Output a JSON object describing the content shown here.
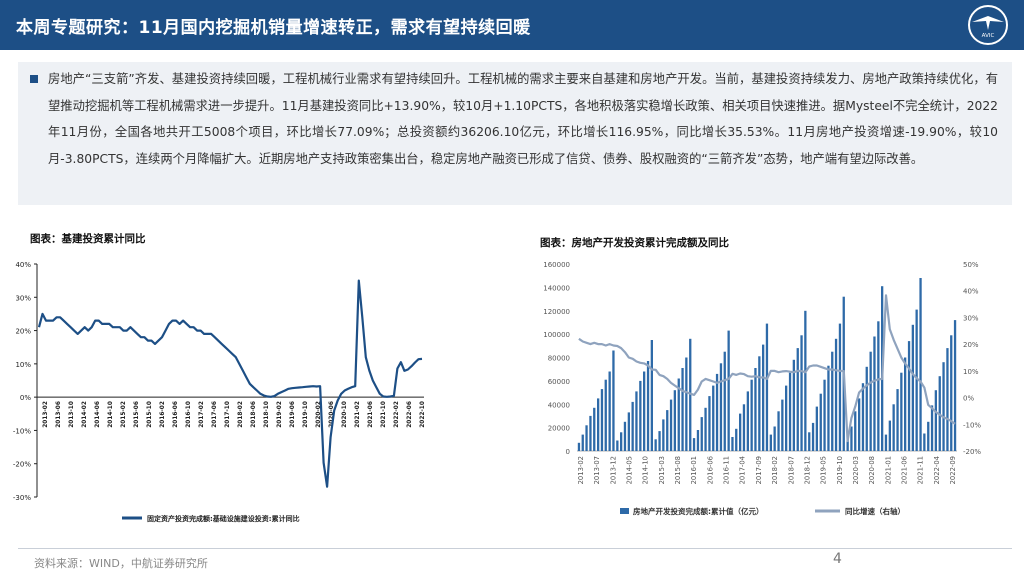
{
  "header": {
    "title": "本周专题研究：11月国内挖掘机销量增速转正，需求有望持续回暖",
    "logo_text": "AVIC",
    "color": "#1d4f86"
  },
  "summary": {
    "text": "房地产“三支箭”齐发、基建投资持续回暖，工程机械行业需求有望持续回升。工程机械的需求主要来自基建和房地产开发。当前，基建投资持续发力、房地产政策持续优化，有望推动挖掘机等工程机械需求进一步提升。11月基建投资同比+13.90%，较10月+1.10PCTS，各地积极落实稳增长政策、相关项目快速推进。据Mysteel不完全统计，2022年11月份，全国各地共开工5008个项目，环比增长77.09%；总投资额约36206.10亿元，环比增长116.95%，同比增长35.53%。11月房地产投资增速-19.90%，较10月-3.80PCTS，连续两个月降幅扩大。近期房地产支持政策密集出台，稳定房地产融资已形成了信贷、债券、股权融资的“三箭齐发”态势，地产端有望边际改善。"
  },
  "footer": {
    "source": "资料来源：WIND，中航证券研究所",
    "page": "4"
  },
  "chart_data": [
    {
      "type": "line",
      "title": "图表：基建投资累计同比",
      "ylim": [
        -30,
        40
      ],
      "yticks": [
        "40%",
        "30%",
        "20%",
        "10%",
        "0%",
        "-10%",
        "-20%",
        "-30%"
      ],
      "tick_labels": [
        "2013-02",
        "2013-06",
        "2013-10",
        "2014-02",
        "2014-06",
        "2014-10",
        "2015-02",
        "2015-06",
        "2015-10",
        "2016-02",
        "2016-06",
        "2016-10",
        "2017-02",
        "2017-06",
        "2017-10",
        "2018-02",
        "2018-06",
        "2018-10",
        "2019-02",
        "2019-06",
        "2019-10",
        "2020-02",
        "2020-06",
        "2020-10",
        "2021-02",
        "2021-06",
        "2021-10",
        "2022-02",
        "2022-06",
        "2022-10"
      ],
      "series": [
        {
          "name": "固定资产投资完成额:基础设施建设投资:累计同比",
          "color": "#1d4f86",
          "values": [
            21,
            25,
            23,
            23,
            23,
            24,
            24,
            23,
            22,
            21,
            20,
            19,
            20,
            21,
            20,
            21,
            23,
            23,
            22,
            22,
            22,
            21,
            21,
            21,
            20,
            20,
            21,
            20,
            19,
            18,
            18,
            17,
            17,
            16,
            17,
            18,
            20,
            22,
            23,
            23,
            22,
            23,
            22,
            21,
            21,
            20,
            20,
            19,
            19,
            19,
            18,
            17,
            16,
            15,
            14,
            13,
            12,
            10,
            8,
            6,
            4,
            3,
            2,
            1,
            0.5,
            0.2,
            0.1,
            0.3,
            1.0,
            1.5,
            2.0,
            2.5,
            2.7,
            2.8,
            2.9,
            3.0,
            3.1,
            3.2,
            3.3,
            3.2,
            3.3,
            -19.7,
            -26.9,
            -12.0,
            -4.0,
            -1.0,
            1.0,
            2.0,
            2.5,
            3.0,
            3.3,
            35,
            24,
            12,
            8,
            5,
            3,
            1,
            0.2,
            0.1,
            0.2,
            0.4,
            8.6,
            10.5,
            7.9,
            8.3,
            9.3,
            10.4,
            11.4,
            11.5
          ]
        }
      ]
    },
    {
      "type": "bar+line",
      "title": "图表：房地产开发投资累计完成额及同比",
      "x_tick_labels": [
        "2013-02",
        "2013-07",
        "2013-12",
        "2014-05",
        "2014-10",
        "2015-03",
        "2015-08",
        "2016-01",
        "2016-06",
        "2016-11",
        "2017-04",
        "2017-09",
        "2018-02",
        "2018-07",
        "2018-12",
        "2019-05",
        "2019-10",
        "2020-03",
        "2020-08",
        "2021-01",
        "2021-06",
        "2021-11",
        "2022-04",
        "2022-09"
      ],
      "left_axis": {
        "ylim": [
          0,
          160000
        ],
        "ticks": [
          "0",
          "20000",
          "40000",
          "60000",
          "80000",
          "100000",
          "120000",
          "140000",
          "160000"
        ]
      },
      "right_axis": {
        "ylim": [
          -20,
          50
        ],
        "ticks": [
          "-20%",
          "-10%",
          "0%",
          "10%",
          "20%",
          "30%",
          "40%",
          "50%"
        ]
      },
      "series": [
        {
          "name": "房地产开发投资完成额:累计值（亿元）",
          "type": "bar",
          "color": "#2e6aa8",
          "values": [
            7000,
            14000,
            22000,
            30000,
            37000,
            45000,
            53000,
            61000,
            68000,
            86000,
            9000,
            16000,
            25000,
            33000,
            42000,
            51000,
            60000,
            68000,
            77000,
            95000,
            10000,
            17000,
            27000,
            35000,
            44000,
            52000,
            62000,
            71000,
            80000,
            96000,
            11000,
            18000,
            29000,
            37000,
            47000,
            56000,
            66000,
            75000,
            85000,
            103000,
            12000,
            19000,
            32000,
            40000,
            51000,
            61000,
            71000,
            81000,
            91000,
            109000,
            14000,
            21000,
            34000,
            44000,
            56000,
            67000,
            78000,
            88000,
            99000,
            120000,
            16000,
            24000,
            38000,
            49000,
            61000,
            73000,
            85000,
            96000,
            109000,
            132000,
            15000,
            21000,
            34000,
            45000,
            58000,
            72000,
            85000,
            98000,
            111000,
            141000,
            14000,
            26000,
            40000,
            53000,
            67000,
            80000,
            94000,
            108000,
            121000,
            148000,
            15000,
            25000,
            39000,
            52000,
            64000,
            76000,
            88000,
            99000,
            112000
          ]
        },
        {
          "name": "同比增速（右轴）",
          "type": "line",
          "color": "#8fa3be",
          "values": [
            22,
            21,
            20.5,
            20,
            20.5,
            20,
            20,
            19.5,
            20,
            19.5,
            19.3,
            18.5,
            17,
            15,
            14.5,
            13.5,
            13,
            12.8,
            12,
            10.5,
            10.4,
            8.5,
            8,
            7,
            5.5,
            4.5,
            3.5,
            2.5,
            2,
            1.5,
            1,
            3,
            6,
            7,
            6.5,
            6,
            5.5,
            6,
            6.5,
            7,
            8.9,
            8.5,
            9,
            8.8,
            8,
            7.8,
            8,
            7.6,
            7.5,
            7,
            10,
            10,
            9.5,
            9.8,
            9.9,
            9.7,
            9.5,
            10,
            9.9,
            9.5,
            11.6,
            12,
            12,
            11.5,
            11,
            10.5,
            10.5,
            10.2,
            10,
            9.9,
            -16.3,
            -7.7,
            -3.3,
            1.9,
            3.4,
            4.6,
            5.6,
            6.3,
            6.8,
            7.0,
            38.3,
            25.6,
            21.6,
            18.3,
            15.0,
            12.7,
            10.9,
            8.8,
            7.2,
            6.0,
            3.7,
            -2.7,
            -4.0,
            -5.4,
            -6.4,
            -7.4,
            -8.0,
            -8.8,
            -9.8
          ]
        }
      ]
    }
  ]
}
